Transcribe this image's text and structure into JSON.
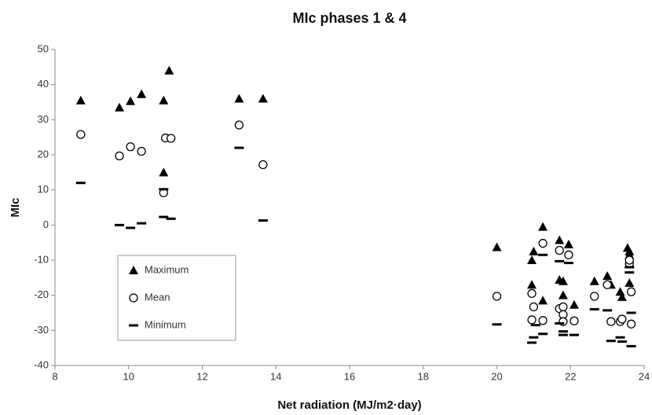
{
  "chart_data": {
    "type": "scatter",
    "title": "MIc phases 1 & 4",
    "x_label": "Net radiation (MJ/m2·day)",
    "y_label": "MIc",
    "xlim": [
      8,
      24
    ],
    "xticks": [
      8,
      10,
      12,
      14,
      16,
      18,
      20,
      22,
      24
    ],
    "ylim": [
      -40,
      50
    ],
    "yticks": [
      -40,
      -30,
      -20,
      -10,
      0,
      10,
      20,
      30,
      40,
      50
    ],
    "grid": false,
    "legend": "left",
    "series": [
      {
        "name": "Maximum",
        "marker": "triangle",
        "color": "#000000",
        "x": [
          8.7,
          9.75,
          10.05,
          10.35,
          11.1,
          10.95,
          10.95,
          13.0,
          13.65,
          20.0,
          20.95,
          20.95,
          21.0,
          21.25,
          21.25,
          21.7,
          21.7,
          21.8,
          21.8,
          21.95,
          22.1,
          22.65,
          23.0,
          23.1,
          23.35,
          23.4,
          23.55,
          23.6,
          23.6,
          23.6
        ],
        "values": [
          35.5,
          33.5,
          35.3,
          37.3,
          44,
          35.5,
          15,
          36,
          36,
          -6.3,
          -17,
          -10,
          -7.5,
          -21.5,
          -0.5,
          -4.3,
          -15.6,
          -16,
          -20,
          -5.5,
          -22.7,
          -16,
          -14.5,
          -17,
          -19,
          -20.5,
          -6.5,
          -7.5,
          -8.5,
          -16.5
        ]
      },
      {
        "name": "Mean",
        "marker": "circle",
        "color": "#000000",
        "x": [
          8.7,
          9.75,
          10.05,
          10.35,
          11.0,
          11.15,
          10.95,
          13.0,
          13.65,
          20.0,
          20.95,
          21.0,
          20.95,
          21.25,
          21.25,
          21.7,
          21.7,
          21.8,
          21.8,
          21.8,
          21.95,
          22.1,
          22.65,
          23.0,
          23.1,
          23.35,
          23.4,
          23.6,
          23.6,
          23.65,
          23.65
        ],
        "values": [
          25.8,
          19.7,
          22.3,
          21,
          24.8,
          24.7,
          9.2,
          28.5,
          17.2,
          -20.3,
          -19.5,
          -23.3,
          -27,
          -5.2,
          -27.2,
          -7.2,
          -23.8,
          -23.3,
          -25.5,
          -27.5,
          -8.5,
          -27.3,
          -20.3,
          -17,
          -27.5,
          -27.5,
          -26.8,
          -11,
          -10,
          -19,
          -28.2
        ]
      },
      {
        "name": "Minimum",
        "marker": "dash",
        "color": "#000000",
        "x": [
          8.7,
          9.75,
          10.05,
          10.35,
          10.95,
          10.95,
          11.15,
          13.0,
          13.65,
          20.0,
          20.95,
          21.0,
          21.05,
          21.25,
          21.25,
          21.7,
          21.7,
          21.8,
          21.8,
          21.95,
          22.1,
          22.65,
          23.0,
          23.1,
          23.35,
          23.4,
          23.6,
          23.6,
          23.65,
          23.65
        ],
        "values": [
          12,
          0,
          -0.8,
          0.5,
          10.2,
          2.3,
          1.8,
          22,
          1.3,
          -28.3,
          -33.5,
          -32,
          -28.5,
          -31,
          -8.5,
          -28,
          -10.3,
          -30.3,
          -31.3,
          -10.8,
          -31.3,
          -24,
          -24.3,
          -33,
          -32,
          -33.2,
          -13.5,
          -12,
          -25,
          -34.5
        ]
      }
    ]
  }
}
